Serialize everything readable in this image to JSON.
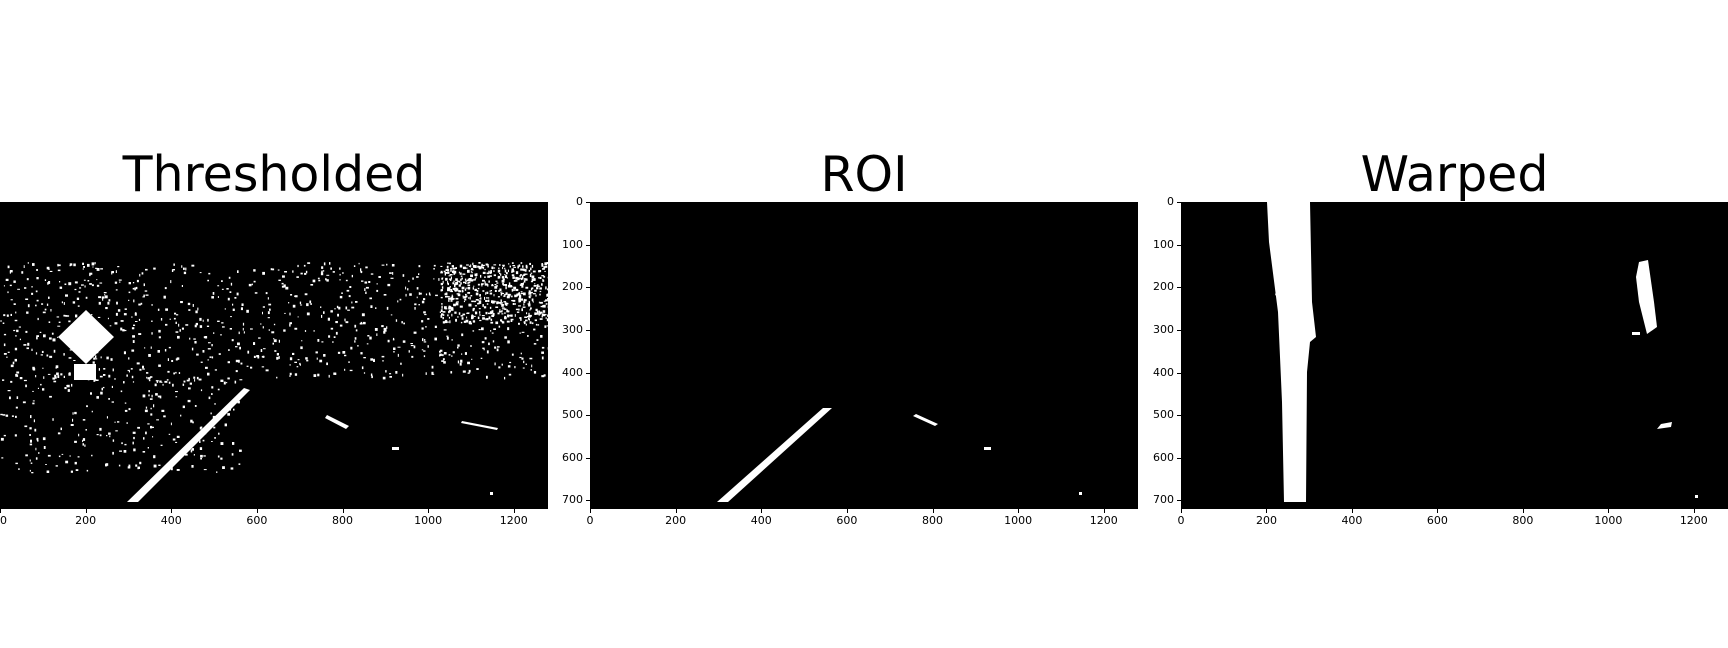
{
  "figure": {
    "panels": [
      {
        "key": "thresholded",
        "title": "Thresholded",
        "x_ticks": [
          "0",
          "200",
          "400",
          "600",
          "800",
          "1000",
          "1200"
        ],
        "y_ticks": [],
        "x_range": [
          0,
          1280
        ],
        "y_range": [
          720,
          0
        ]
      },
      {
        "key": "roi",
        "title": "ROI",
        "x_ticks": [
          "0",
          "200",
          "400",
          "600",
          "800",
          "1000",
          "1200"
        ],
        "y_ticks": [
          "0",
          "100",
          "200",
          "300",
          "400",
          "500",
          "600",
          "700"
        ],
        "x_range": [
          0,
          1280
        ],
        "y_range": [
          720,
          0
        ]
      },
      {
        "key": "warped",
        "title": "Warped",
        "x_ticks": [
          "0",
          "200",
          "400",
          "600",
          "800",
          "1000",
          "1200"
        ],
        "y_ticks": [
          "0",
          "100",
          "200",
          "300",
          "400",
          "500",
          "600",
          "700"
        ],
        "x_range": [
          0,
          1280
        ],
        "y_range": [
          720,
          0
        ]
      }
    ],
    "colors": {
      "background": "#ffffff",
      "image_bg": "#000000",
      "foreground": "#ffffff"
    }
  }
}
